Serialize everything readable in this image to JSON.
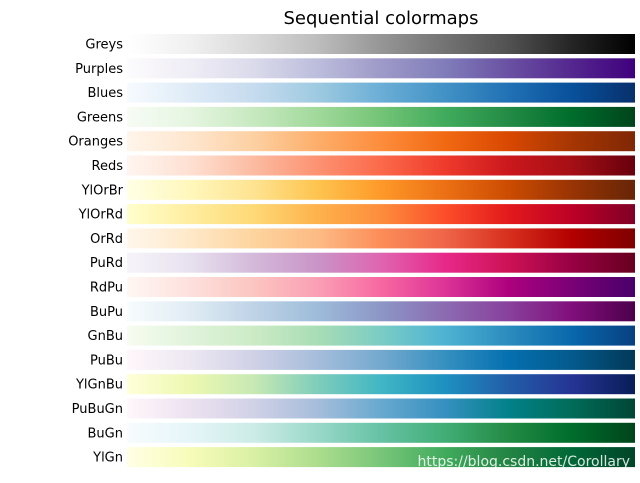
{
  "chart_data": {
    "type": "heatmap",
    "title": "Sequential colormaps",
    "watermark": "https://blog.csdn.net/Corollary",
    "colormaps": [
      {
        "name": "Greys",
        "colors": [
          "#ffffff",
          "#f0f0f0",
          "#d9d9d9",
          "#bdbdbd",
          "#969696",
          "#737373",
          "#525252",
          "#252525",
          "#000000"
        ]
      },
      {
        "name": "Purples",
        "colors": [
          "#fcfbfd",
          "#efedf5",
          "#dadaeb",
          "#bcbddc",
          "#9e9ac8",
          "#807dba",
          "#6a51a3",
          "#54278f",
          "#3f007d"
        ]
      },
      {
        "name": "Blues",
        "colors": [
          "#f7fbff",
          "#deebf7",
          "#c6dbef",
          "#9ecae1",
          "#6baed6",
          "#4292c6",
          "#2171b5",
          "#08519c",
          "#08306b"
        ]
      },
      {
        "name": "Greens",
        "colors": [
          "#f7fcf5",
          "#e5f5e0",
          "#c7e9c0",
          "#a1d99b",
          "#74c476",
          "#41ab5d",
          "#238b45",
          "#006d2c",
          "#00441b"
        ]
      },
      {
        "name": "Oranges",
        "colors": [
          "#fff5eb",
          "#fee6ce",
          "#fdd0a2",
          "#fdae6b",
          "#fd8d3c",
          "#f16913",
          "#d94801",
          "#a63603",
          "#7f2704"
        ]
      },
      {
        "name": "Reds",
        "colors": [
          "#fff5f0",
          "#fee0d2",
          "#fcbba1",
          "#fc9272",
          "#fb6a4a",
          "#ef3b2c",
          "#cb181d",
          "#a50f15",
          "#67000d"
        ]
      },
      {
        "name": "YlOrBr",
        "colors": [
          "#ffffe5",
          "#fff7bc",
          "#fee391",
          "#fec44f",
          "#fe9929",
          "#ec7014",
          "#cc4c02",
          "#993404",
          "#662506"
        ]
      },
      {
        "name": "YlOrRd",
        "colors": [
          "#ffffcc",
          "#ffeda0",
          "#fed976",
          "#feb24c",
          "#fd8d3c",
          "#fc4e2a",
          "#e31a1c",
          "#bd0026",
          "#800026"
        ]
      },
      {
        "name": "OrRd",
        "colors": [
          "#fff7ec",
          "#fee8c8",
          "#fdd49e",
          "#fdbb84",
          "#fc8d59",
          "#ef6548",
          "#d7301f",
          "#b30000",
          "#7f0000"
        ]
      },
      {
        "name": "PuRd",
        "colors": [
          "#f7f4f9",
          "#e7e1ef",
          "#d4b9da",
          "#c994c7",
          "#df65b0",
          "#e7298a",
          "#ce1256",
          "#980043",
          "#67001f"
        ]
      },
      {
        "name": "RdPu",
        "colors": [
          "#fff7f3",
          "#fde0dd",
          "#fcc5c0",
          "#fa9fb5",
          "#f768a1",
          "#dd3497",
          "#ae017e",
          "#7a0177",
          "#49006a"
        ]
      },
      {
        "name": "BuPu",
        "colors": [
          "#f7fcfd",
          "#e0ecf4",
          "#bfd3e6",
          "#9ebcda",
          "#8c96c6",
          "#8c6bb1",
          "#88419d",
          "#810f7c",
          "#4d004b"
        ]
      },
      {
        "name": "GnBu",
        "colors": [
          "#f7fcf0",
          "#e0f3db",
          "#ccebc5",
          "#a8ddb5",
          "#7bccc4",
          "#4eb3d3",
          "#2b8cbe",
          "#0868ac",
          "#084081"
        ]
      },
      {
        "name": "PuBu",
        "colors": [
          "#fff7fb",
          "#ece7f2",
          "#d0d1e6",
          "#a6bddb",
          "#74a9cf",
          "#3690c0",
          "#0570b0",
          "#045a8d",
          "#023858"
        ]
      },
      {
        "name": "YlGnBu",
        "colors": [
          "#ffffd9",
          "#edf8b1",
          "#c7e9b4",
          "#7fcdbb",
          "#41b6c4",
          "#1d91c0",
          "#225ea8",
          "#253494",
          "#081d58"
        ]
      },
      {
        "name": "PuBuGn",
        "colors": [
          "#fff7fb",
          "#ece2f0",
          "#d0d1e6",
          "#a6bddb",
          "#67a9cf",
          "#3690c0",
          "#02818a",
          "#016c59",
          "#014636"
        ]
      },
      {
        "name": "BuGn",
        "colors": [
          "#f7fcfd",
          "#e5f5f9",
          "#ccece6",
          "#99d8c9",
          "#66c2a4",
          "#41ae76",
          "#238b45",
          "#006d2c",
          "#00441b"
        ]
      },
      {
        "name": "YlGn",
        "colors": [
          "#ffffe5",
          "#f7fcb9",
          "#d9f0a3",
          "#addd8e",
          "#78c679",
          "#41ab5d",
          "#238443",
          "#006837",
          "#004529"
        ]
      }
    ]
  }
}
